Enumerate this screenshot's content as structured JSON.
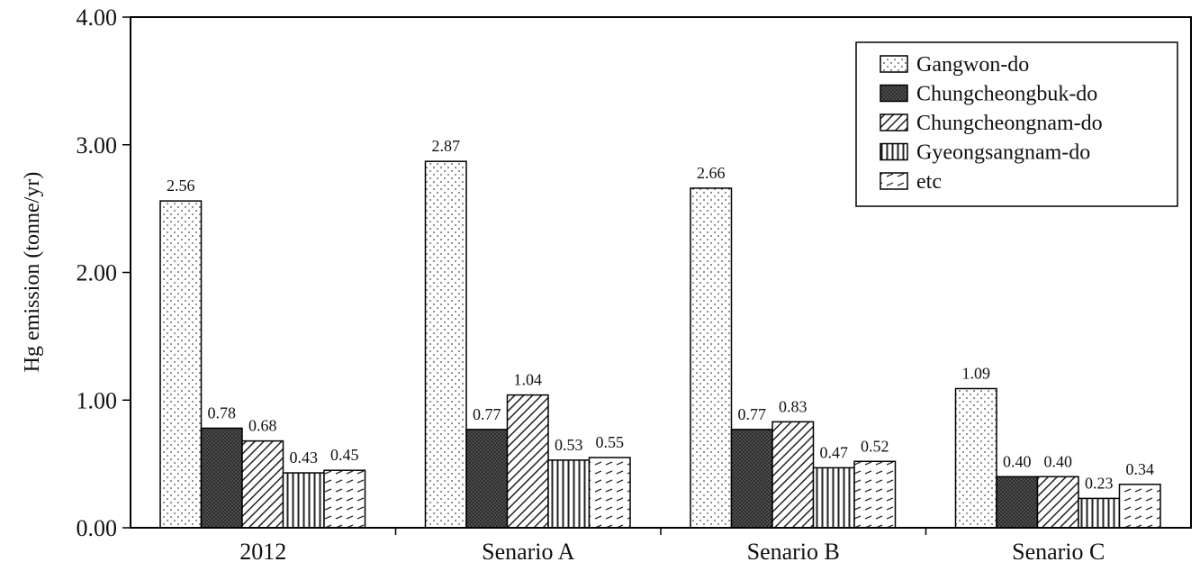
{
  "chart_data": {
    "type": "bar",
    "title": "",
    "xlabel": "",
    "ylabel": "Hg emission (tonne/yr)",
    "ylim": [
      0,
      4
    ],
    "yticks": [
      "0.00",
      "1.00",
      "2.00",
      "3.00",
      "4.00"
    ],
    "categories": [
      "2012",
      "Senario A",
      "Senario B",
      "Senario C"
    ],
    "series": [
      {
        "name": "Gangwon-do",
        "values": [
          2.56,
          2.87,
          2.66,
          1.09
        ],
        "labels": [
          "2.56",
          "2.87",
          "2.66",
          "1.09"
        ],
        "pattern": "dots"
      },
      {
        "name": "Chungcheongbuk-do",
        "values": [
          0.78,
          0.77,
          0.77,
          0.4
        ],
        "labels": [
          "0.78",
          "0.77",
          "0.77",
          "0.40"
        ],
        "pattern": "dark-cross"
      },
      {
        "name": "Chungcheongnam-do",
        "values": [
          0.68,
          1.04,
          0.83,
          0.4
        ],
        "labels": [
          "0.68",
          "1.04",
          "0.83",
          "0.40"
        ],
        "pattern": "diagonal"
      },
      {
        "name": "Gyeongsangnam-do",
        "values": [
          0.43,
          0.53,
          0.47,
          0.23
        ],
        "labels": [
          "0.43",
          "0.53",
          "0.47",
          "0.23"
        ],
        "pattern": "vertical"
      },
      {
        "name": "etc",
        "values": [
          0.45,
          0.55,
          0.52,
          0.34
        ],
        "labels": [
          "0.45",
          "0.55",
          "0.52",
          "0.34"
        ],
        "pattern": "dashes"
      }
    ],
    "legend_position": "top-right",
    "grid": false
  }
}
